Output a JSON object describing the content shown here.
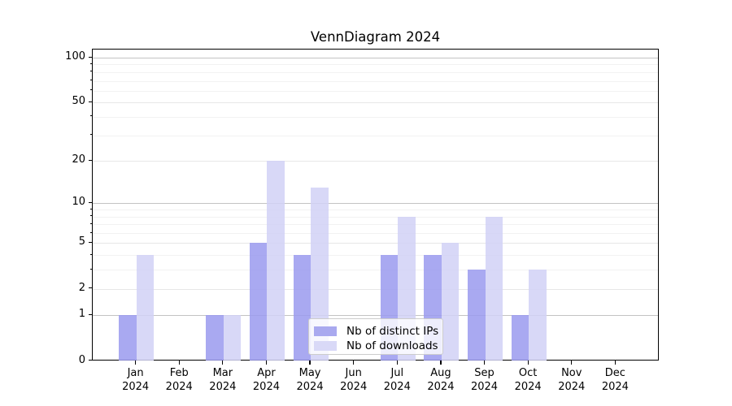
{
  "chart_data": {
    "type": "bar",
    "title": "VennDiagram 2024",
    "categories": [
      "Jan 2024",
      "Feb 2024",
      "Mar 2024",
      "Apr 2024",
      "May 2024",
      "Jun 2024",
      "Jul 2024",
      "Aug 2024",
      "Sep 2024",
      "Oct 2024",
      "Nov 2024",
      "Dec 2024"
    ],
    "series": [
      {
        "name": "Nb of distinct IPs",
        "color": "#a9a9ef",
        "values": [
          1,
          0,
          1,
          5,
          4,
          0,
          4,
          4,
          3,
          1,
          0,
          0
        ]
      },
      {
        "name": "Nb of downloads",
        "color": "#d9d9f7",
        "values": [
          4,
          0,
          1,
          20,
          13,
          0,
          8,
          5,
          8,
          3,
          0,
          0
        ]
      }
    ],
    "xlabel": "",
    "ylabel": "",
    "yscale": "log1p",
    "ylim": [
      0,
      115
    ],
    "y_tick_values": [
      0,
      1,
      2,
      5,
      10,
      20,
      50,
      100
    ],
    "y_minor_tick_values": [
      3,
      4,
      6,
      7,
      8,
      9,
      30,
      40,
      60,
      70,
      80,
      90
    ],
    "grid": "on",
    "legend_position": "inside-bottom-center",
    "colors": {
      "major_grid": "#c3c3c3",
      "mid_grid": "#e7e7e7",
      "minor_grid": "#f2f2f2",
      "spine": "#000000"
    }
  }
}
